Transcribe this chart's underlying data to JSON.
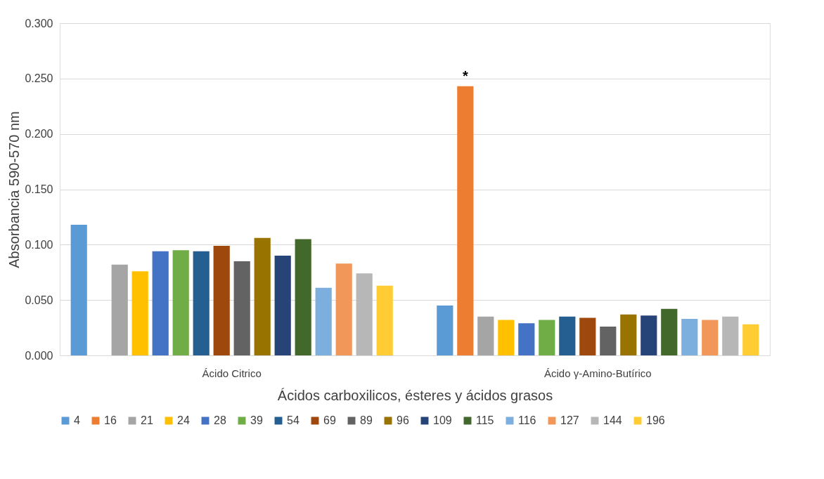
{
  "chart_data": {
    "type": "bar",
    "xlabel": "Ácidos carboxilicos, ésteres y ácidos grasos",
    "ylabel": "Absorbancia 590-570 nm",
    "categories": [
      "Ácido Citrico",
      "Ácido γ-Amino-Butírico"
    ],
    "ylim": [
      0,
      0.3
    ],
    "yticks": [
      {
        "value": 0,
        "label": "0.000"
      },
      {
        "value": 0.05,
        "label": "0.050"
      },
      {
        "value": 0.1,
        "label": "0.100"
      },
      {
        "value": 0.15,
        "label": "0.150"
      },
      {
        "value": 0.2,
        "label": "0.200"
      },
      {
        "value": 0.25,
        "label": "0.250"
      },
      {
        "value": 0.3,
        "label": "0.300"
      }
    ],
    "grid": "y",
    "legend": "bottom",
    "annotations": [
      "*"
    ],
    "series": [
      {
        "name": "4",
        "color": "#5b9bd5",
        "values": [
          0.118,
          0.045
        ]
      },
      {
        "name": "16",
        "color": "#ed7d31",
        "values": [
          null,
          0.243
        ]
      },
      {
        "name": "21",
        "color": "#a5a5a5",
        "values": [
          0.082,
          0.035
        ]
      },
      {
        "name": "24",
        "color": "#ffc000",
        "values": [
          0.076,
          0.032
        ]
      },
      {
        "name": "28",
        "color": "#4472c4",
        "values": [
          0.094,
          0.029
        ]
      },
      {
        "name": "39",
        "color": "#70ad47",
        "values": [
          0.095,
          0.032
        ]
      },
      {
        "name": "54",
        "color": "#255e91",
        "values": [
          0.094,
          0.035
        ]
      },
      {
        "name": "69",
        "color": "#9e480e",
        "values": [
          0.099,
          0.034
        ]
      },
      {
        "name": "89",
        "color": "#636363",
        "values": [
          0.085,
          0.026
        ]
      },
      {
        "name": "96",
        "color": "#997300",
        "values": [
          0.106,
          0.037
        ]
      },
      {
        "name": "109",
        "color": "#264478",
        "values": [
          0.09,
          0.036
        ]
      },
      {
        "name": "115",
        "color": "#43682b",
        "values": [
          0.105,
          0.042
        ]
      },
      {
        "name": "116",
        "color": "#7cafdd",
        "values": [
          0.061,
          0.033
        ]
      },
      {
        "name": "127",
        "color": "#f1975a",
        "values": [
          0.083,
          0.032
        ]
      },
      {
        "name": "144",
        "color": "#b7b7b7",
        "values": [
          0.074,
          0.035
        ]
      },
      {
        "name": "196",
        "color": "#ffcd33",
        "values": [
          0.063,
          0.028
        ]
      }
    ]
  }
}
